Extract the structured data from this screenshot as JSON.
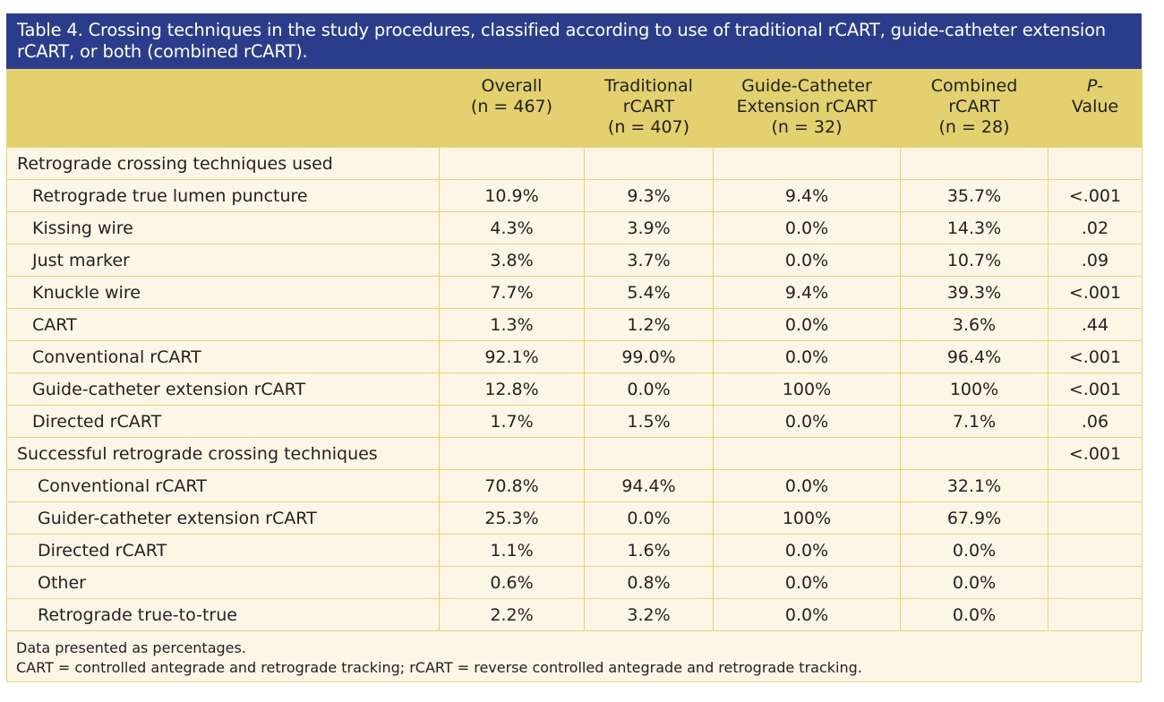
{
  "caption": "Table 4. Crossing techniques in the study procedures, classified according to use of traditional rCART, guide-catheter extension rCART, or both (combined rCART).",
  "header": {
    "col0": "",
    "overall": [
      "Overall",
      "(n = 467)"
    ],
    "traditional": [
      "Traditional",
      "rCART",
      "(n = 407)"
    ],
    "gce": [
      "Guide-Catheter",
      "Extension rCART",
      "(n = 32)"
    ],
    "combined": [
      "Combined",
      "rCART",
      "(n = 28)"
    ],
    "pvalue": {
      "italic": "P",
      "rest1": "-",
      "rest2": "Value"
    }
  },
  "sections": [
    {
      "label": "Retrograde crossing techniques used",
      "p": "",
      "rows": [
        {
          "label": "Retrograde true lumen puncture",
          "overall": "10.9%",
          "traditional": "9.3%",
          "gce": "9.4%",
          "combined": "35.7%",
          "p": "<.001"
        },
        {
          "label": "Kissing wire",
          "overall": "4.3%",
          "traditional": "3.9%",
          "gce": "0.0%",
          "combined": "14.3%",
          "p": ".02"
        },
        {
          "label": "Just marker",
          "overall": "3.8%",
          "traditional": "3.7%",
          "gce": "0.0%",
          "combined": "10.7%",
          "p": ".09"
        },
        {
          "label": "Knuckle wire",
          "overall": "7.7%",
          "traditional": "5.4%",
          "gce": "9.4%",
          "combined": "39.3%",
          "p": "<.001"
        },
        {
          "label": "CART",
          "overall": "1.3%",
          "traditional": "1.2%",
          "gce": "0.0%",
          "combined": "3.6%",
          "p": ".44"
        },
        {
          "label": "Conventional rCART",
          "overall": "92.1%",
          "traditional": "99.0%",
          "gce": "0.0%",
          "combined": "96.4%",
          "p": "<.001"
        },
        {
          "label": "Guide-catheter extension rCART",
          "overall": "12.8%",
          "traditional": "0.0%",
          "gce": "100%",
          "combined": "100%",
          "p": "<.001"
        },
        {
          "label": "Directed rCART",
          "overall": "1.7%",
          "traditional": "1.5%",
          "gce": "0.0%",
          "combined": "7.1%",
          "p": ".06"
        }
      ]
    },
    {
      "label": "Successful retrograde crossing techniques",
      "p": "<.001",
      "rows": [
        {
          "label": "Conventional rCART",
          "overall": "70.8%",
          "traditional": "94.4%",
          "gce": "0.0%",
          "combined": "32.1%",
          "p": ""
        },
        {
          "label": "Guider-catheter extension rCART",
          "overall": "25.3%",
          "traditional": "0.0%",
          "gce": "100%",
          "combined": "67.9%",
          "p": ""
        },
        {
          "label": "Directed rCART",
          "overall": "1.1%",
          "traditional": "1.6%",
          "gce": "0.0%",
          "combined": "0.0%",
          "p": ""
        },
        {
          "label": "Other",
          "overall": "0.6%",
          "traditional": "0.8%",
          "gce": "0.0%",
          "combined": "0.0%",
          "p": ""
        },
        {
          "label": "Retrograde true-to-true",
          "overall": "2.2%",
          "traditional": "3.2%",
          "gce": "0.0%",
          "combined": "0.0%",
          "p": ""
        }
      ]
    }
  ],
  "footnotes": [
    "Data presented as percentages.",
    "CART = controlled antegrade and retrograde tracking; rCART = reverse controlled antegrade and retrograde tracking."
  ],
  "colors": {
    "caption_bg": "#2b3d8a",
    "header_bg": "#e3d06f",
    "cell_bg": "#fdf6e6",
    "border": "#e6d27a"
  }
}
